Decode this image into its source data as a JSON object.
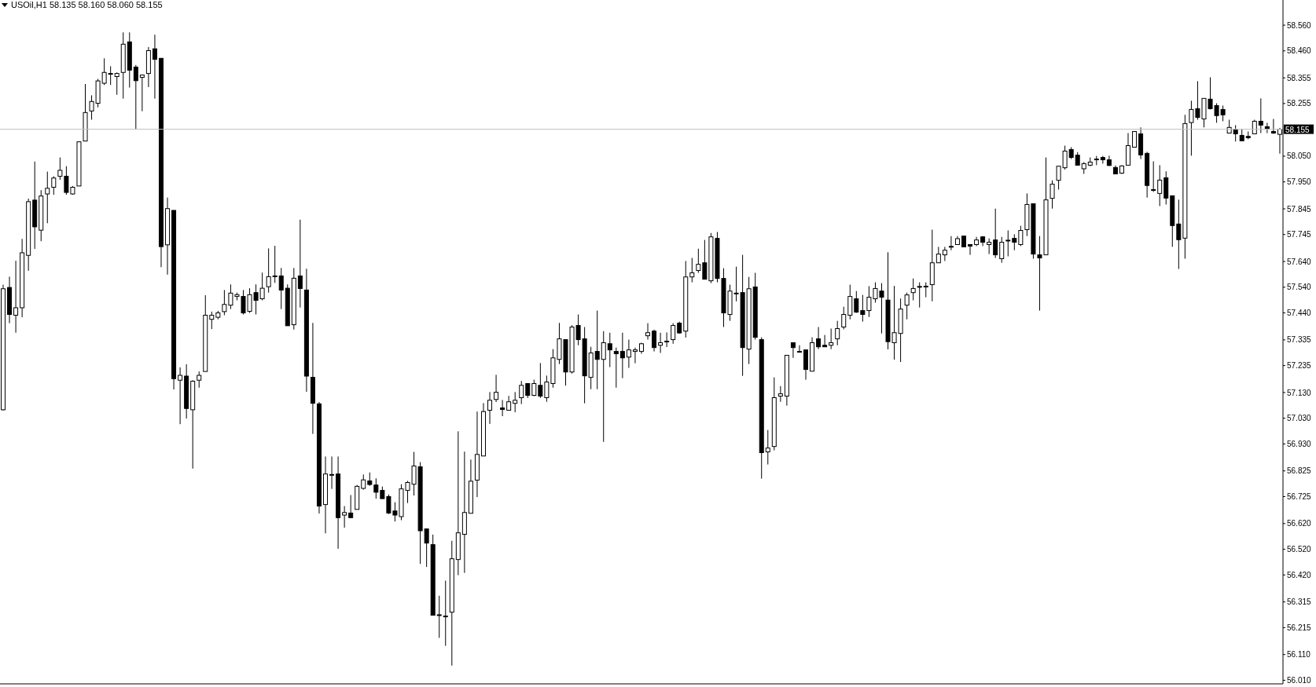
{
  "chart_data": {
    "type": "candlestick",
    "title": "USOil,H1  58.135 58.160 58.060 58.155",
    "categories": [
      null,
      null,
      null,
      null,
      null,
      null,
      null,
      null,
      null,
      null,
      null,
      null,
      null,
      null,
      null,
      null,
      null,
      null,
      null,
      null,
      null,
      null,
      null,
      null,
      null,
      null,
      null,
      null,
      null,
      null,
      null,
      null,
      null,
      null,
      null,
      null,
      null,
      null,
      null,
      null,
      null,
      null,
      null,
      null,
      null,
      null,
      null,
      null,
      null,
      null,
      null,
      null,
      null,
      null,
      null,
      null,
      null,
      null,
      null,
      null,
      null,
      null,
      null,
      null,
      null,
      null,
      null,
      null,
      null,
      null,
      null,
      null,
      null,
      null,
      null,
      null,
      null,
      null,
      null,
      null,
      null,
      null,
      null,
      null,
      null,
      null,
      null,
      null,
      null,
      null,
      null,
      null,
      null,
      null,
      null,
      null,
      null,
      null,
      null,
      null,
      null,
      null,
      null,
      null,
      null,
      null,
      null,
      null,
      null,
      null,
      null,
      null,
      null,
      null,
      null,
      null,
      null,
      null,
      null,
      null,
      null,
      null,
      null,
      null,
      null,
      null,
      null,
      null,
      null,
      null,
      null,
      null,
      null,
      null,
      null,
      null,
      null,
      null,
      null,
      null,
      null,
      null,
      null,
      null,
      null,
      null,
      null,
      null,
      null,
      null,
      null,
      null,
      null,
      null,
      null,
      null,
      null,
      null,
      null,
      null,
      null,
      null,
      null,
      null,
      null,
      null,
      null,
      null,
      null,
      null,
      null,
      null,
      null,
      null,
      null,
      null,
      null,
      null,
      null,
      null,
      null,
      null,
      null,
      null,
      null,
      null,
      null,
      null,
      null,
      null,
      null,
      null,
      null,
      null,
      null,
      null,
      null,
      null,
      null,
      null,
      null,
      null,
      null
    ],
    "ohlc": [
      [
        57.063,
        57.55,
        57.06,
        57.534
      ],
      [
        57.539,
        57.581,
        57.4,
        57.434
      ],
      [
        57.431,
        57.643,
        57.363,
        57.46
      ],
      [
        57.46,
        57.728,
        57.423,
        57.674
      ],
      [
        57.664,
        57.885,
        57.604,
        57.873
      ],
      [
        57.879,
        58.029,
        57.689,
        57.775
      ],
      [
        57.762,
        57.918,
        57.719,
        57.895
      ],
      [
        57.903,
        57.99,
        57.789,
        57.925
      ],
      [
        57.929,
        57.972,
        57.9,
        57.965
      ],
      [
        57.972,
        58.045,
        57.958,
        57.995
      ],
      [
        57.972,
        58.011,
        57.9,
        57.909
      ],
      [
        57.903,
        57.934,
        57.9,
        57.929
      ],
      [
        57.934,
        58.106,
        57.934,
        58.106
      ],
      [
        58.109,
        58.331,
        58.109,
        58.22
      ],
      [
        58.226,
        58.287,
        58.192,
        58.263
      ],
      [
        58.256,
        58.351,
        58.24,
        58.343
      ],
      [
        58.334,
        58.431,
        58.327,
        58.376
      ],
      [
        58.372,
        58.4,
        58.327,
        58.372
      ],
      [
        58.36,
        58.376,
        58.289,
        58.372
      ],
      [
        58.376,
        58.532,
        58.274,
        58.486
      ],
      [
        58.495,
        58.532,
        58.317,
        58.385
      ],
      [
        58.397,
        58.405,
        58.154,
        58.344
      ],
      [
        58.357,
        58.366,
        58.225,
        58.366
      ],
      [
        58.372,
        58.475,
        58.319,
        58.461
      ],
      [
        58.468,
        58.523,
        58.274,
        58.427
      ],
      [
        58.431,
        58.431,
        57.618,
        57.698
      ],
      [
        57.705,
        57.889,
        57.589,
        57.846
      ],
      [
        57.839,
        57.839,
        57.142,
        57.184
      ],
      [
        57.178,
        57.228,
        57.007,
        57.197
      ],
      [
        57.194,
        57.24,
        57.029,
        57.068
      ],
      [
        57.063,
        57.178,
        56.834,
        57.174
      ],
      [
        57.178,
        57.212,
        57.149,
        57.197
      ],
      [
        57.212,
        57.509,
        57.212,
        57.431
      ],
      [
        57.415,
        57.445,
        57.377,
        57.431
      ],
      [
        57.423,
        57.448,
        57.415,
        57.44
      ],
      [
        57.445,
        57.529,
        57.431,
        57.473
      ],
      [
        57.47,
        57.551,
        57.455,
        57.517
      ],
      [
        57.504,
        57.519,
        57.489,
        57.511
      ],
      [
        57.504,
        57.529,
        57.434,
        57.44
      ],
      [
        57.446,
        57.536,
        57.44,
        57.511
      ],
      [
        57.519,
        57.551,
        57.434,
        57.489
      ],
      [
        57.495,
        57.597,
        57.489,
        57.536
      ],
      [
        57.542,
        57.691,
        57.519,
        57.581
      ],
      [
        57.584,
        57.701,
        57.557,
        57.584
      ],
      [
        57.584,
        57.615,
        57.455,
        57.529
      ],
      [
        57.536,
        57.551,
        57.39,
        57.39
      ],
      [
        57.394,
        57.615,
        57.375,
        57.575
      ],
      [
        57.584,
        57.803,
        57.461,
        57.535
      ],
      [
        57.529,
        57.612,
        57.133,
        57.194
      ],
      [
        57.189,
        57.401,
        56.969,
        57.088
      ],
      [
        57.086,
        57.093,
        56.659,
        56.688
      ],
      [
        56.694,
        56.881,
        56.582,
        56.813
      ],
      [
        56.811,
        56.881,
        56.755,
        56.811
      ],
      [
        56.813,
        56.881,
        56.522,
        56.643
      ],
      [
        56.653,
        56.688,
        56.604,
        56.663
      ],
      [
        56.661,
        56.731,
        56.643,
        56.643
      ],
      [
        56.675,
        56.77,
        56.675,
        56.765
      ],
      [
        56.757,
        56.811,
        56.752,
        56.79
      ],
      [
        56.786,
        56.819,
        56.767,
        56.772
      ],
      [
        56.77,
        56.796,
        56.717,
        56.742
      ],
      [
        56.749,
        56.764,
        56.717,
        56.717
      ],
      [
        56.725,
        56.733,
        56.657,
        56.661
      ],
      [
        56.669,
        56.703,
        56.628,
        56.653
      ],
      [
        56.647,
        56.773,
        56.633,
        56.755
      ],
      [
        56.749,
        56.786,
        56.7,
        56.78
      ],
      [
        56.773,
        56.899,
        56.729,
        56.844
      ],
      [
        56.841,
        56.859,
        56.463,
        56.592
      ],
      [
        56.599,
        56.599,
        56.451,
        56.544
      ],
      [
        56.538,
        56.577,
        56.263,
        56.263
      ],
      [
        56.265,
        56.339,
        56.175,
        56.265
      ],
      [
        56.26,
        56.398,
        56.144,
        56.26
      ],
      [
        56.275,
        56.553,
        56.067,
        56.483
      ],
      [
        56.48,
        56.979,
        56.419,
        56.584
      ],
      [
        56.578,
        56.9,
        56.428,
        56.663
      ],
      [
        56.66,
        56.869,
        56.66,
        56.785
      ],
      [
        56.789,
        57.056,
        56.723,
        56.889
      ],
      [
        56.883,
        57.089,
        56.883,
        57.056
      ],
      [
        57.061,
        57.132,
        57.008,
        57.1
      ],
      [
        57.103,
        57.199,
        57.093,
        57.131
      ],
      [
        57.07,
        57.101,
        57.038,
        57.064
      ],
      [
        57.061,
        57.117,
        57.061,
        57.094
      ],
      [
        57.088,
        57.132,
        57.053,
        57.1
      ],
      [
        57.11,
        57.175,
        57.085,
        57.158
      ],
      [
        57.165,
        57.165,
        57.109,
        57.119
      ],
      [
        57.119,
        57.18,
        57.116,
        57.165
      ],
      [
        57.158,
        57.245,
        57.109,
        57.116
      ],
      [
        57.11,
        57.196,
        57.094,
        57.171
      ],
      [
        57.165,
        57.299,
        57.149,
        57.265
      ],
      [
        57.259,
        57.401,
        57.241,
        57.339
      ],
      [
        57.336,
        57.336,
        57.157,
        57.21
      ],
      [
        57.21,
        57.392,
        57.204,
        57.385
      ],
      [
        57.391,
        57.434,
        57.314,
        57.336
      ],
      [
        57.339,
        57.385,
        57.088,
        57.195
      ],
      [
        57.189,
        57.308,
        57.143,
        57.284
      ],
      [
        57.29,
        57.449,
        57.143,
        57.259
      ],
      [
        57.259,
        57.369,
        56.938,
        57.324
      ],
      [
        57.32,
        57.363,
        57.229,
        57.296
      ],
      [
        57.29,
        57.305,
        57.149,
        57.281
      ],
      [
        57.29,
        57.363,
        57.186,
        57.265
      ],
      [
        57.268,
        57.336,
        57.226,
        57.296
      ],
      [
        57.29,
        57.305,
        57.244,
        57.296
      ],
      [
        57.29,
        57.324,
        57.281,
        57.32
      ],
      [
        57.351,
        57.4,
        57.336,
        57.363
      ],
      [
        57.369,
        57.375,
        57.29,
        57.305
      ],
      [
        57.314,
        57.363,
        57.284,
        57.324
      ],
      [
        57.33,
        57.364,
        57.307,
        57.33
      ],
      [
        57.336,
        57.4,
        57.32,
        57.391
      ],
      [
        57.4,
        57.406,
        57.359,
        57.362
      ],
      [
        57.369,
        57.642,
        57.344,
        57.58
      ],
      [
        57.58,
        57.654,
        57.559,
        57.596
      ],
      [
        57.605,
        57.69,
        57.596,
        57.629
      ],
      [
        57.635,
        57.724,
        57.571,
        57.571
      ],
      [
        57.565,
        57.751,
        57.556,
        57.736
      ],
      [
        57.73,
        57.755,
        57.559,
        57.574
      ],
      [
        57.574,
        57.614,
        57.385,
        57.44
      ],
      [
        57.434,
        57.55,
        57.409,
        57.525
      ],
      [
        57.517,
        57.62,
        57.485,
        57.517
      ],
      [
        57.519,
        57.666,
        57.195,
        57.305
      ],
      [
        57.299,
        57.58,
        57.241,
        57.534
      ],
      [
        57.541,
        57.596,
        57.336,
        57.345
      ],
      [
        57.336,
        57.345,
        56.795,
        56.896
      ],
      [
        56.899,
        56.984,
        56.85,
        56.914
      ],
      [
        56.92,
        57.189,
        56.905,
        57.11
      ],
      [
        57.116,
        57.155,
        57.094,
        57.125
      ],
      [
        57.116,
        57.275,
        57.079,
        57.275
      ],
      [
        57.324,
        57.324,
        57.265,
        57.305
      ],
      [
        57.29,
        57.314,
        57.29,
        57.29
      ],
      [
        57.296,
        57.296,
        57.18,
        57.22
      ],
      [
        57.213,
        57.345,
        57.213,
        57.324
      ],
      [
        57.339,
        57.385,
        57.299,
        57.308
      ],
      [
        57.314,
        57.354,
        57.308,
        57.308
      ],
      [
        57.314,
        57.379,
        57.299,
        57.324
      ],
      [
        57.339,
        57.409,
        57.314,
        57.379
      ],
      [
        57.385,
        57.464,
        57.376,
        57.434
      ],
      [
        57.431,
        57.55,
        57.415,
        57.504
      ],
      [
        57.495,
        57.525,
        57.44,
        57.443
      ],
      [
        57.449,
        57.51,
        57.406,
        57.434
      ],
      [
        57.449,
        57.544,
        57.424,
        57.501
      ],
      [
        57.495,
        57.559,
        57.48,
        57.535
      ],
      [
        57.525,
        57.556,
        57.36,
        57.501
      ],
      [
        57.49,
        57.676,
        57.298,
        57.328
      ],
      [
        57.324,
        57.545,
        57.258,
        57.363
      ],
      [
        57.36,
        57.496,
        57.249,
        57.455
      ],
      [
        57.47,
        57.519,
        57.415,
        57.51
      ],
      [
        57.519,
        57.574,
        57.489,
        57.535
      ],
      [
        57.543,
        57.559,
        57.461,
        57.543
      ],
      [
        57.544,
        57.559,
        57.501,
        57.544
      ],
      [
        57.55,
        57.764,
        57.485,
        57.635
      ],
      [
        57.635,
        57.697,
        57.635,
        57.669
      ],
      [
        57.666,
        57.697,
        57.642,
        57.684
      ],
      [
        57.699,
        57.739,
        57.684,
        57.699
      ],
      [
        57.706,
        57.739,
        57.706,
        57.729
      ],
      [
        57.739,
        57.739,
        57.697,
        57.697
      ],
      [
        57.706,
        57.706,
        57.666,
        57.7
      ],
      [
        57.706,
        57.736,
        57.7,
        57.724
      ],
      [
        57.736,
        57.739,
        57.7,
        57.715
      ],
      [
        57.706,
        57.73,
        57.669,
        57.715
      ],
      [
        57.724,
        57.846,
        57.654,
        57.666
      ],
      [
        57.651,
        57.736,
        57.635,
        57.715
      ],
      [
        57.723,
        57.761,
        57.66,
        57.723
      ],
      [
        57.73,
        57.746,
        57.684,
        57.715
      ],
      [
        57.706,
        57.779,
        57.7,
        57.761
      ],
      [
        57.764,
        57.905,
        57.739,
        57.862
      ],
      [
        57.865,
        57.865,
        57.651,
        57.669
      ],
      [
        57.666,
        57.739,
        57.449,
        57.654
      ],
      [
        57.666,
        58.045,
        57.666,
        57.88
      ],
      [
        57.886,
        57.956,
        57.846,
        57.941
      ],
      [
        57.956,
        58.011,
        57.92,
        58.011
      ],
      [
        58.005,
        58.091,
        57.998,
        58.07
      ],
      [
        58.076,
        58.085,
        58.039,
        58.045
      ],
      [
        58.054,
        58.066,
        58.015,
        58.015
      ],
      [
        58.001,
        58.027,
        57.981,
        58.021
      ],
      [
        58.015,
        58.045,
        58.011,
        58.027
      ],
      [
        58.039,
        58.051,
        58.015,
        58.039
      ],
      [
        58.045,
        58.051,
        58.021,
        58.036
      ],
      [
        58.036,
        58.052,
        58.011,
        58.014
      ],
      [
        58.006,
        58.014,
        57.981,
        57.981
      ],
      [
        57.984,
        58.015,
        57.981,
        58.012
      ],
      [
        58.015,
        58.14,
        58.015,
        58.091
      ],
      [
        58.085,
        58.146,
        58.085,
        58.146
      ],
      [
        58.137,
        58.162,
        58.039,
        58.055
      ],
      [
        58.061,
        58.067,
        57.889,
        57.936
      ],
      [
        57.92,
        58.03,
        57.911,
        57.92
      ],
      [
        57.905,
        58.015,
        57.856,
        57.957
      ],
      [
        57.966,
        57.991,
        57.862,
        57.887
      ],
      [
        57.896,
        57.896,
        57.697,
        57.78
      ],
      [
        57.786,
        57.881,
        57.611,
        57.725
      ],
      [
        57.731,
        58.211,
        57.651,
        58.177
      ],
      [
        58.181,
        58.266,
        58.052,
        58.232
      ],
      [
        58.235,
        58.342,
        58.192,
        58.201
      ],
      [
        58.195,
        58.275,
        58.162,
        58.275
      ],
      [
        58.272,
        58.357,
        58.232,
        58.235
      ],
      [
        58.247,
        58.256,
        58.18,
        58.208
      ],
      [
        58.232,
        58.247,
        58.186,
        58.211
      ],
      [
        58.14,
        58.192,
        58.14,
        58.162
      ],
      [
        58.153,
        58.171,
        58.107,
        58.137
      ],
      [
        58.131,
        58.156,
        58.11,
        58.11
      ],
      [
        58.127,
        58.146,
        58.116,
        58.122
      ],
      [
        58.137,
        58.192,
        58.137,
        58.186
      ],
      [
        58.186,
        58.275,
        58.14,
        58.171
      ],
      [
        58.165,
        58.18,
        58.14,
        58.156
      ],
      [
        58.146,
        58.195,
        58.137,
        58.14
      ],
      [
        58.135,
        58.16,
        58.06,
        58.155
      ]
    ],
    "ylim": [
      55.996,
      58.658
    ],
    "yticks": [
      {
        "value": 58.56,
        "label": "58.560"
      },
      {
        "value": 58.46,
        "label": "58.460"
      },
      {
        "value": 58.355,
        "label": "58.355"
      },
      {
        "value": 58.255,
        "label": "58.255"
      },
      {
        "value": 58.05,
        "label": "58.050"
      },
      {
        "value": 57.95,
        "label": "57.950"
      },
      {
        "value": 57.845,
        "label": "57.845"
      },
      {
        "value": 57.745,
        "label": "57.745"
      },
      {
        "value": 57.64,
        "label": "57.640"
      },
      {
        "value": 57.54,
        "label": "57.540"
      },
      {
        "value": 57.44,
        "label": "57.440"
      },
      {
        "value": 57.335,
        "label": "57.335"
      },
      {
        "value": 57.235,
        "label": "57.235"
      },
      {
        "value": 57.13,
        "label": "57.130"
      },
      {
        "value": 57.03,
        "label": "57.030"
      },
      {
        "value": 56.93,
        "label": "56.930"
      },
      {
        "value": 56.825,
        "label": "56.825"
      },
      {
        "value": 56.725,
        "label": "56.725"
      },
      {
        "value": 56.62,
        "label": "56.620"
      },
      {
        "value": 56.52,
        "label": "56.520"
      },
      {
        "value": 56.42,
        "label": "56.420"
      },
      {
        "value": 56.315,
        "label": "56.315"
      },
      {
        "value": 56.215,
        "label": "56.215"
      },
      {
        "value": 56.11,
        "label": "56.110"
      },
      {
        "value": 56.01,
        "label": "56.010"
      }
    ],
    "ref_lines": [
      {
        "axis": "y",
        "value": 58.155,
        "label": "58.155",
        "color": "#c0c0c0"
      }
    ],
    "tick_labels": "y",
    "grid": false,
    "legend": false
  }
}
